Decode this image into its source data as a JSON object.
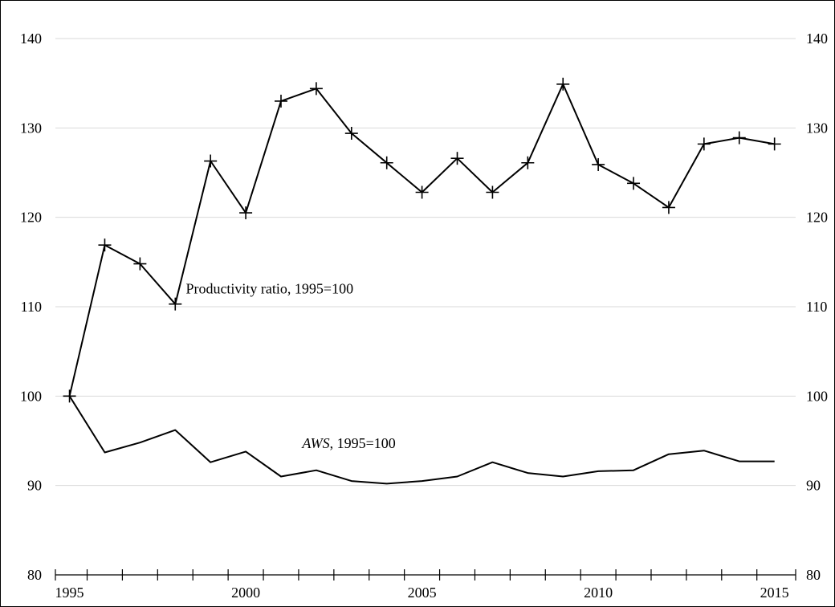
{
  "chart_data": {
    "type": "line",
    "title": "",
    "xlabel": "",
    "ylabel": "",
    "x": [
      1995,
      1996,
      1997,
      1998,
      1999,
      2000,
      2001,
      2002,
      2003,
      2004,
      2005,
      2006,
      2007,
      2008,
      2009,
      2010,
      2011,
      2012,
      2013,
      2014,
      2015
    ],
    "xlim": [
      1994.6,
      2015.6
    ],
    "ylim": [
      80,
      140
    ],
    "y_ticks": [
      80,
      90,
      100,
      110,
      120,
      130,
      140
    ],
    "x_tick_labels": [
      1995,
      2000,
      2005,
      2010,
      2015
    ],
    "grid": "horizontal",
    "secondary_y_axis": true,
    "series": [
      {
        "name": "",
        "marker": "plus",
        "values": [
          100,
          116.9,
          114.8,
          110.3,
          126.3,
          120.5,
          133.0,
          134.4,
          129.4,
          126.1,
          122.8,
          126.6,
          122.8,
          126.1,
          134.9,
          125.9,
          123.8,
          121.1,
          128.2,
          128.9,
          128.2
        ]
      },
      {
        "name": "",
        "marker": "none",
        "values": [
          100,
          93.7,
          94.8,
          96.2,
          92.6,
          93.8,
          91.0,
          91.7,
          90.5,
          90.2,
          90.5,
          91.0,
          92.6,
          91.4,
          91.0,
          91.6,
          91.7,
          93.5,
          93.9,
          92.7,
          92.7
        ]
      }
    ],
    "annotations": [
      {
        "series_index": 0,
        "prefix": "",
        "italic": "",
        "text": "Productivity ratio, 1995=100",
        "at_x": 1998.3,
        "at_y": 111.5
      },
      {
        "series_index": 1,
        "prefix": "",
        "italic": "AWS",
        "text": ", 1995=100",
        "at_x": 2001.6,
        "at_y": 94.2
      }
    ]
  }
}
